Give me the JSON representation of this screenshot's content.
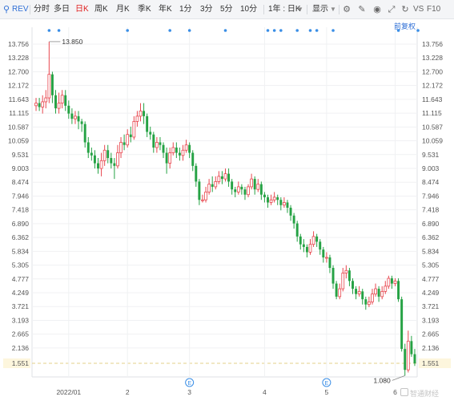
{
  "toolbar": {
    "symbol": "REV",
    "periods": [
      "分时",
      "多日",
      "日K",
      "周K",
      "月K",
      "季K",
      "年K",
      "1分",
      "3分",
      "5分",
      "10分"
    ],
    "active_period": "日K",
    "range_select": "1年 : 日K",
    "display_menu": "显示",
    "vs_label": "VS",
    "f10_label": "F10"
  },
  "fuquan_label": "前复权",
  "watermark": "智通财经",
  "markers": {
    "event_glyph": "E",
    "event_color": "#3a8ee6",
    "top_dot_color": "#3a8ee6"
  },
  "colors": {
    "up": "#e8474f",
    "down": "#25a244",
    "last_price_line": "#e3d08a",
    "last_price_bg": "#fdf6dd"
  },
  "chart_data": {
    "type": "candlestick",
    "y_ticks": [
      "13.756",
      "13.228",
      "12.700",
      "12.172",
      "11.643",
      "11.115",
      "10.587",
      "10.059",
      "9.531",
      "9.003",
      "8.474",
      "7.946",
      "7.418",
      "6.890",
      "6.362",
      "5.834",
      "5.305",
      "4.777",
      "4.249",
      "3.721",
      "3.193",
      "2.665",
      "2.136",
      "1.551"
    ],
    "ylim": [
      1.03,
      14.4
    ],
    "x_labels": [
      {
        "label": "2022/01",
        "index": 10
      },
      {
        "label": "2",
        "index": 28
      },
      {
        "label": "3",
        "index": 47
      },
      {
        "label": "4",
        "index": 70
      },
      {
        "label": "5",
        "index": 89
      },
      {
        "label": "6",
        "index": 110
      }
    ],
    "max_label": "13.850",
    "min_label": "1.080",
    "last_price": 1.551,
    "top_event_indices": [
      4,
      7,
      28,
      41,
      47,
      58,
      71,
      73,
      75,
      80,
      84,
      86,
      91,
      111,
      117
    ],
    "earnings_indices": [
      47,
      89
    ],
    "candles": [
      [
        11.4,
        11.5,
        11.7,
        11.2
      ],
      [
        11.5,
        11.35,
        11.7,
        11.2
      ],
      [
        11.35,
        11.55,
        11.8,
        11.1
      ],
      [
        11.55,
        11.7,
        12.0,
        11.3
      ],
      [
        11.7,
        12.6,
        13.85,
        11.5
      ],
      [
        12.6,
        11.8,
        12.7,
        11.5
      ],
      [
        11.8,
        11.3,
        12.0,
        11.1
      ],
      [
        11.3,
        11.5,
        11.9,
        11.1
      ],
      [
        11.5,
        11.8,
        12.0,
        11.3
      ],
      [
        11.8,
        11.4,
        12.0,
        11.2
      ],
      [
        11.4,
        11.1,
        11.6,
        10.9
      ],
      [
        11.1,
        10.9,
        11.3,
        10.7
      ],
      [
        10.9,
        11.0,
        11.2,
        10.7
      ],
      [
        11.0,
        10.8,
        11.2,
        10.5
      ],
      [
        10.8,
        10.7,
        10.9,
        10.4
      ],
      [
        10.7,
        10.0,
        10.8,
        9.8
      ],
      [
        10.0,
        9.6,
        10.2,
        9.4
      ],
      [
        9.6,
        9.5,
        9.8,
        9.3
      ],
      [
        9.5,
        9.2,
        9.7,
        9.0
      ],
      [
        9.2,
        9.0,
        9.4,
        8.8
      ],
      [
        9.0,
        9.3,
        9.6,
        8.7
      ],
      [
        9.3,
        9.7,
        9.9,
        9.1
      ],
      [
        9.7,
        9.4,
        9.9,
        9.2
      ],
      [
        9.4,
        9.2,
        9.6,
        9.0
      ],
      [
        9.2,
        9.1,
        9.4,
        8.6
      ],
      [
        9.1,
        9.6,
        9.9,
        9.0
      ],
      [
        9.6,
        10.0,
        10.2,
        9.4
      ],
      [
        10.0,
        9.9,
        10.3,
        9.7
      ],
      [
        9.9,
        10.3,
        10.5,
        9.8
      ],
      [
        10.3,
        10.2,
        10.6,
        10.0
      ],
      [
        10.2,
        10.8,
        11.0,
        10.1
      ],
      [
        10.8,
        11.0,
        11.2,
        10.6
      ],
      [
        11.0,
        11.2,
        11.5,
        10.8
      ],
      [
        11.2,
        11.0,
        11.5,
        10.7
      ],
      [
        11.0,
        10.4,
        11.1,
        10.2
      ],
      [
        10.4,
        10.3,
        10.6,
        10.1
      ],
      [
        10.3,
        9.8,
        10.4,
        9.6
      ],
      [
        9.8,
        10.0,
        10.2,
        9.6
      ],
      [
        10.0,
        9.9,
        10.2,
        9.7
      ],
      [
        9.9,
        9.6,
        10.0,
        9.4
      ],
      [
        9.6,
        9.2,
        9.8,
        8.8
      ],
      [
        9.2,
        9.6,
        9.8,
        9.0
      ],
      [
        9.6,
        9.8,
        10.0,
        9.5
      ],
      [
        9.8,
        9.6,
        10.0,
        9.4
      ],
      [
        9.6,
        9.5,
        9.8,
        9.3
      ],
      [
        9.5,
        9.7,
        9.9,
        9.3
      ],
      [
        9.7,
        9.9,
        10.1,
        9.6
      ],
      [
        9.9,
        9.6,
        10.0,
        9.4
      ],
      [
        9.6,
        9.1,
        9.7,
        8.9
      ],
      [
        9.1,
        8.5,
        9.2,
        8.3
      ],
      [
        8.5,
        7.8,
        8.6,
        7.6
      ],
      [
        7.8,
        7.8,
        8.0,
        7.7
      ],
      [
        7.8,
        8.1,
        8.3,
        7.7
      ],
      [
        8.1,
        8.4,
        8.6,
        8.0
      ],
      [
        8.4,
        8.3,
        8.7,
        8.1
      ],
      [
        8.3,
        8.5,
        8.7,
        8.2
      ],
      [
        8.5,
        8.7,
        8.9,
        8.4
      ],
      [
        8.7,
        8.6,
        8.9,
        8.4
      ],
      [
        8.6,
        8.8,
        9.0,
        8.5
      ],
      [
        8.8,
        8.5,
        9.0,
        8.3
      ],
      [
        8.5,
        8.2,
        8.6,
        8.0
      ],
      [
        8.2,
        8.1,
        8.3,
        7.9
      ],
      [
        8.1,
        8.3,
        8.5,
        8.0
      ],
      [
        8.3,
        8.2,
        8.4,
        8.0
      ],
      [
        8.2,
        8.0,
        8.3,
        7.8
      ],
      [
        8.0,
        8.3,
        8.4,
        7.9
      ],
      [
        8.3,
        8.6,
        8.8,
        8.2
      ],
      [
        8.6,
        8.2,
        8.7,
        8.0
      ],
      [
        8.2,
        8.4,
        8.6,
        8.1
      ],
      [
        8.4,
        8.0,
        8.5,
        7.8
      ],
      [
        8.0,
        7.9,
        8.1,
        7.7
      ],
      [
        7.9,
        7.7,
        8.0,
        7.5
      ],
      [
        7.7,
        7.8,
        8.0,
        7.6
      ],
      [
        7.8,
        7.9,
        8.1,
        7.7
      ],
      [
        7.9,
        7.8,
        8.0,
        7.6
      ],
      [
        7.8,
        7.6,
        7.9,
        7.4
      ],
      [
        7.6,
        7.7,
        7.9,
        7.5
      ],
      [
        7.7,
        7.5,
        7.8,
        7.3
      ],
      [
        7.5,
        7.2,
        7.6,
        7.0
      ],
      [
        7.2,
        6.9,
        7.3,
        6.7
      ],
      [
        6.9,
        6.4,
        7.0,
        6.2
      ],
      [
        6.4,
        6.1,
        6.5,
        5.9
      ],
      [
        6.1,
        6.0,
        6.3,
        5.8
      ],
      [
        6.0,
        5.8,
        6.1,
        5.6
      ],
      [
        5.8,
        6.1,
        6.3,
        5.7
      ],
      [
        6.1,
        6.4,
        6.6,
        6.0
      ],
      [
        6.4,
        6.2,
        6.5,
        6.0
      ],
      [
        6.2,
        5.9,
        6.3,
        5.7
      ],
      [
        5.9,
        5.6,
        6.0,
        5.4
      ],
      [
        5.6,
        5.6,
        5.8,
        5.4
      ],
      [
        5.6,
        5.2,
        5.7,
        5.0
      ],
      [
        5.2,
        4.6,
        5.3,
        4.4
      ],
      [
        4.6,
        4.1,
        4.7,
        4.0
      ],
      [
        4.1,
        4.4,
        4.6,
        4.0
      ],
      [
        4.4,
        5.0,
        5.2,
        4.3
      ],
      [
        5.0,
        5.1,
        5.3,
        4.8
      ],
      [
        5.1,
        4.7,
        5.2,
        4.5
      ],
      [
        4.7,
        4.4,
        4.8,
        4.2
      ],
      [
        4.4,
        4.2,
        4.5,
        4.0
      ],
      [
        4.2,
        4.3,
        4.5,
        4.1
      ],
      [
        4.3,
        4.0,
        4.4,
        3.8
      ],
      [
        4.0,
        3.8,
        4.1,
        3.6
      ],
      [
        3.8,
        3.9,
        4.1,
        3.7
      ],
      [
        3.9,
        4.2,
        4.4,
        3.8
      ],
      [
        4.2,
        4.4,
        4.6,
        4.1
      ],
      [
        4.4,
        4.1,
        4.5,
        3.9
      ],
      [
        4.1,
        4.3,
        4.5,
        4.0
      ],
      [
        4.3,
        4.5,
        4.7,
        4.2
      ],
      [
        4.5,
        4.8,
        4.9,
        4.4
      ],
      [
        4.8,
        4.6,
        4.9,
        4.4
      ],
      [
        4.6,
        4.7,
        4.8,
        4.5
      ],
      [
        4.7,
        4.0,
        4.8,
        3.9
      ],
      [
        4.0,
        2.1,
        4.1,
        2.0
      ],
      [
        2.1,
        1.3,
        2.3,
        1.08
      ],
      [
        1.3,
        2.4,
        2.8,
        1.2
      ],
      [
        2.4,
        1.9,
        2.6,
        1.8
      ],
      [
        1.9,
        1.55,
        2.1,
        1.45
      ]
    ]
  }
}
